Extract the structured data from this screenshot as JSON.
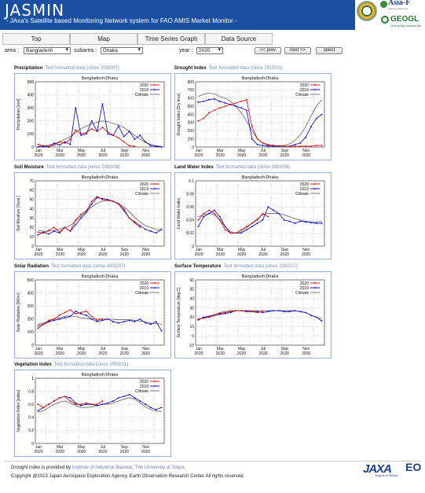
{
  "header": {
    "title": "JASMIN",
    "subtitle": "- JAxa's Satellite based MonItoring Network system for FAO AMIS Market Monitor -"
  },
  "logos": {
    "asia": "Asia-F",
    "asia_sub": "Asia Food Security",
    "geoglam": "GEOGL",
    "geoglam_sub": "Global Agricultural Mo"
  },
  "tabs": [
    "Top",
    "Map",
    "Time Series Graph",
    "Data Source"
  ],
  "controls": {
    "area_label": "area :",
    "area_value": "Bangladesh",
    "subarea_label": "subarea :",
    "subarea_value": "Dhaka",
    "year_label": "year :",
    "year_value": "2020",
    "prev": "<< prev",
    "next": "next >>",
    "latest": "latest"
  },
  "months": [
    "Jan",
    "Mar",
    "May",
    "Jul",
    "Sep",
    "Nov"
  ],
  "month_year": "2020",
  "legend": [
    "2020",
    "2019",
    "Climate"
  ],
  "colors": {
    "y2020": "#e00000",
    "y2019": "#0000d0",
    "climate": "#707070"
  },
  "panels": [
    {
      "id": "precip",
      "title": "Precipitation",
      "link": "Text formatted data (since 2002/07)",
      "subtitle": "Bangladesh:Dhaka",
      "ylabel": "Precipitation [mm]",
      "ylim": [
        0,
        500
      ],
      "yticks": [
        "0",
        "100",
        "200",
        "300",
        "400",
        "500"
      ],
      "series": {
        "y2020": [
          20,
          10,
          5,
          15,
          40,
          30,
          60,
          130,
          100,
          110,
          140,
          120,
          150,
          115,
          90,
          70,
          40,
          10,
          5
        ],
        "y2019": [
          0,
          5,
          0,
          30,
          15,
          40,
          20,
          300,
          90,
          100,
          200,
          120,
          330,
          100,
          90,
          160,
          80,
          120,
          60,
          90,
          40,
          10,
          5,
          0
        ],
        "climate": [
          5,
          8,
          15,
          25,
          40,
          60,
          80,
          110,
          140,
          160,
          180,
          190,
          200,
          195,
          180,
          170,
          150,
          120,
          90,
          60,
          35,
          20,
          10,
          5
        ]
      }
    },
    {
      "id": "drought",
      "title": "Drought Index",
      "link": "Text formatted data (since 2015/01)",
      "subtitle": "Bangladesh:Dhaka",
      "ylabel": "Drought Index [Dry tess]",
      "ylim": [
        0,
        800
      ],
      "yticks": [
        "0",
        "100",
        "200",
        "300",
        "400",
        "500",
        "600",
        "700",
        "800"
      ],
      "series": {
        "y2020": [
          320,
          350,
          420,
          450,
          480,
          500,
          520,
          540,
          560,
          580,
          250,
          100,
          50,
          30,
          20,
          15,
          10,
          10,
          10,
          10,
          10,
          10,
          20,
          20
        ],
        "y2019": [
          550,
          560,
          580,
          590,
          560,
          540,
          520,
          500,
          480,
          450,
          100,
          30,
          20,
          10,
          10,
          10,
          10,
          10,
          30,
          50,
          120,
          250,
          350,
          400
        ],
        "climate": [
          620,
          650,
          660,
          650,
          620,
          600,
          560,
          500,
          420,
          320,
          200,
          100,
          50,
          20,
          15,
          15,
          20,
          40,
          80,
          150,
          250,
          380,
          500,
          580
        ]
      }
    },
    {
      "id": "soil",
      "title": "Soil Moisture",
      "link": "Text formatted data (since 2002/06)",
      "subtitle": "Bangladesh:Dhaka",
      "ylabel": "Soil Moisture [%vol.]",
      "ylim": [
        0,
        70
      ],
      "yticks": [
        "0",
        "10",
        "20",
        "30",
        "40",
        "50",
        "60",
        "70"
      ],
      "series": {
        "y2020": [
          15,
          14,
          17,
          20,
          15,
          20,
          16,
          28,
          34,
          38,
          48,
          53,
          50,
          49,
          48,
          45,
          40,
          30,
          25,
          20
        ],
        "y2019": [
          12,
          15,
          13,
          16,
          14,
          20,
          16,
          23,
          30,
          36,
          45,
          52,
          51,
          50,
          48,
          45,
          38,
          30,
          26,
          22,
          18,
          16,
          14,
          18
        ],
        "climate": [
          17,
          16,
          16,
          17,
          18,
          20,
          22,
          27,
          32,
          38,
          42,
          46,
          48,
          49,
          48,
          46,
          42,
          37,
          31,
          26,
          22,
          20,
          18,
          17
        ]
      }
    },
    {
      "id": "land",
      "title": "Land Water Index",
      "link": "Text formatted data (since 2002/06)",
      "subtitle": "Bangladesh:Dhaka",
      "ylabel": "Land Water Index",
      "ylim": [
        0,
        0.1
      ],
      "yticks": [
        "0",
        "0.02",
        "0.04",
        "0.06",
        "0.08",
        "0.1"
      ],
      "series": {
        "y2020": [
          0.04,
          0.05,
          0.055,
          0.05,
          0.04,
          0.025,
          0.02,
          0.02,
          0.025,
          0.03,
          0.035,
          0.04,
          0.05,
          0.045
        ],
        "y2019": [
          0.03,
          0.045,
          0.05,
          0.055,
          0.045,
          0.03,
          0.02,
          0.02,
          0.02,
          0.025,
          0.03,
          0.035,
          0.04,
          0.06,
          0.055,
          0.05,
          0.04,
          0.038,
          0.035,
          0.038,
          0.037,
          0.036,
          0.035,
          0.035
        ],
        "climate": [
          0.045,
          0.048,
          0.05,
          0.048,
          0.04,
          0.03,
          0.022,
          0.02,
          0.022,
          0.028,
          0.035,
          0.042,
          0.048,
          0.05,
          0.05,
          0.05,
          0.048,
          0.045,
          0.042,
          0.04,
          0.038,
          0.037,
          0.037,
          0.038
        ]
      }
    },
    {
      "id": "solar",
      "title": "Solar Radiation",
      "link": "Text formatted data (since 2002/07)",
      "subtitle": "Bangladesh:Dhaka",
      "ylabel": "Solar Radiation [W/m²]",
      "ylim": [
        0,
        500
      ],
      "yticks": [
        "0",
        "100",
        "200",
        "300",
        "400",
        "500"
      ],
      "series": {
        "y2020": [
          150,
          160,
          190,
          200,
          230,
          250,
          270,
          240,
          250,
          260,
          220,
          190,
          200
        ],
        "y2019": [
          130,
          160,
          180,
          190,
          200,
          210,
          220,
          260,
          240,
          230,
          200,
          180,
          190,
          200,
          180,
          170,
          180,
          190,
          180,
          200,
          170,
          160,
          180,
          110
        ],
        "climate": [
          160,
          170,
          185,
          200,
          210,
          220,
          225,
          220,
          210,
          205,
          200,
          200,
          200,
          200,
          198,
          195,
          195,
          195,
          190,
          185,
          180,
          170,
          165,
          160
        ]
      }
    },
    {
      "id": "surftemp",
      "title": "Surface Temperature",
      "link": "Text formatted data (since 2002/07)",
      "subtitle": "Bangladesh:Dhaka",
      "ylabel": "Surface Temperature [deg C]",
      "ylim": [
        -10,
        60
      ],
      "yticks": [
        "-10",
        "0",
        "10",
        "20",
        "30",
        "40",
        "50",
        "60"
      ],
      "series": {
        "y2020": [
          18,
          19,
          20,
          22,
          24,
          25,
          26,
          27,
          27,
          27,
          26,
          25,
          26
        ],
        "y2019": [
          17,
          20,
          21,
          22,
          23,
          24,
          25,
          27,
          27,
          26,
          26,
          26,
          25,
          26,
          27,
          27,
          26,
          26,
          27,
          26,
          25,
          22,
          20,
          16
        ],
        "climate": [
          18,
          19,
          21,
          23,
          25,
          26,
          27,
          27,
          27,
          27,
          27,
          27,
          27,
          27,
          27,
          27,
          27,
          27,
          27,
          26,
          25,
          22,
          20,
          18
        ]
      }
    },
    {
      "id": "veg",
      "title": "Vegetation Index",
      "link": "Text formatted data (since 2009/01)",
      "subtitle": "Bangladesh:Dhaka",
      "ylabel": "Vegetation Index [index]",
      "ylim": [
        0,
        1
      ],
      "yticks": [
        "0",
        "0.2",
        "0.4",
        "0.6",
        "0.8",
        "1"
      ],
      "series": {
        "y2020": [
          0.6,
          0.55,
          0.6,
          0.65,
          0.7,
          0.72,
          0.65,
          0.6,
          0.6,
          0.62,
          0.6,
          0.6,
          0.65
        ],
        "y2019": [
          0.5,
          0.55,
          0.6,
          0.65,
          0.7,
          0.72,
          0.7,
          0.62,
          0.58,
          0.6,
          0.6,
          0.58,
          0.6,
          0.62,
          0.65,
          0.7,
          0.72,
          0.75,
          0.7,
          0.65,
          0.6,
          0.55,
          0.52,
          0.55
        ],
        "climate": [
          0.48,
          0.5,
          0.55,
          0.6,
          0.63,
          0.65,
          0.62,
          0.58,
          0.55,
          0.55,
          0.56,
          0.58,
          0.6,
          0.6,
          0.62,
          0.65,
          0.68,
          0.7,
          0.68,
          0.62,
          0.56,
          0.52,
          0.5,
          0.49
        ]
      }
    }
  ],
  "footer": {
    "line1": "Drought index is provided by ",
    "line1_link": "Institute of Industrial Science, The University of Tokyo",
    "line1_end": ".",
    "line2": "Copyright @2013  Japan Aerospace Exploration Agency, Earth Observation Research Center All rights reserved.",
    "jaxa": "JAXA",
    "jaxa_sub": "Explore to Realize",
    "eo": "EO"
  }
}
